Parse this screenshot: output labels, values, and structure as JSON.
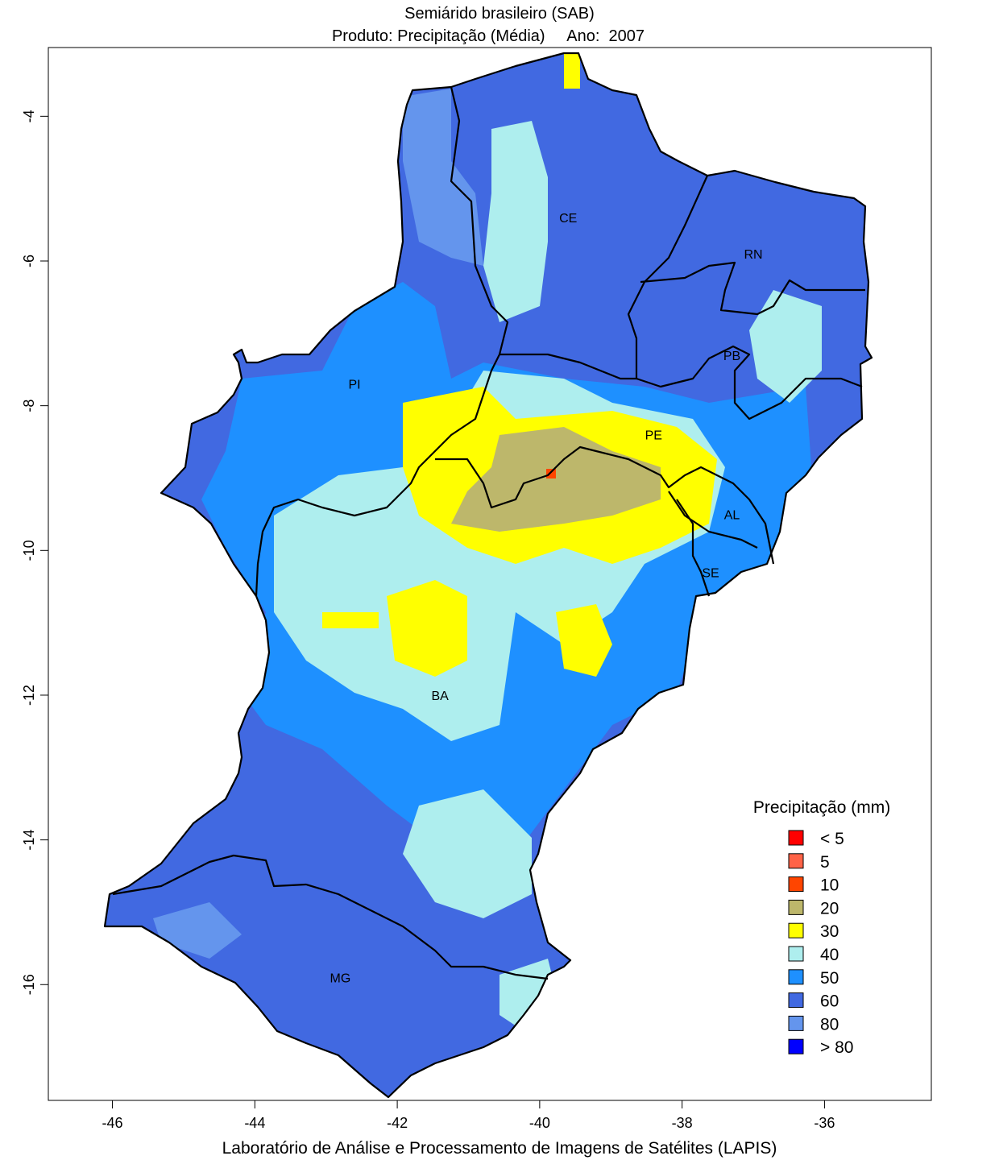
{
  "title": "Semiárido brasileiro (SAB)",
  "subtitle": {
    "product_label": "Produto:",
    "product": "Precipitação (Média)",
    "year_label": "Ano:",
    "year": "2007"
  },
  "footer": "Laboratório de Análise e Processamento de Imagens de Satélites (LAPIS)",
  "axes": {
    "x_ticks": [
      -46,
      -44,
      -42,
      -40,
      -38,
      -36
    ],
    "y_ticks": [
      -4,
      -6,
      -8,
      -10,
      -12,
      -14,
      -16
    ],
    "xlim": [
      -46.9,
      -34.5
    ],
    "ylim": [
      -17.6,
      -3.05
    ]
  },
  "legend": {
    "title": "Precipitação (mm)",
    "items": [
      {
        "label": "< 5",
        "color": "#ff0000"
      },
      {
        "label": "5",
        "color": "#ff6347"
      },
      {
        "label": "10",
        "color": "#ff4500"
      },
      {
        "label": "20",
        "color": "#bdb76b"
      },
      {
        "label": "30",
        "color": "#ffff00"
      },
      {
        "label": "40",
        "color": "#aeeeee"
      },
      {
        "label": "50",
        "color": "#1e90ff"
      },
      {
        "label": "60",
        "color": "#4169e1"
      },
      {
        "label": "80",
        "color": "#6495ed"
      },
      {
        "label": "> 80",
        "color": "#0000ff"
      }
    ]
  },
  "states": [
    {
      "label": "CE",
      "lon": -39.6,
      "lat": -5.4
    },
    {
      "label": "RN",
      "lon": -37.0,
      "lat": -5.9
    },
    {
      "label": "PB",
      "lon": -37.3,
      "lat": -7.3
    },
    {
      "label": "PI",
      "lon": -42.6,
      "lat": -7.7
    },
    {
      "label": "PE",
      "lon": -38.4,
      "lat": -8.4
    },
    {
      "label": "AL",
      "lon": -37.3,
      "lat": -9.5
    },
    {
      "label": "SE",
      "lon": -37.6,
      "lat": -10.3
    },
    {
      "label": "BA",
      "lon": -41.4,
      "lat": -12.0
    },
    {
      "label": "MG",
      "lon": -42.8,
      "lat": -15.9
    }
  ]
}
